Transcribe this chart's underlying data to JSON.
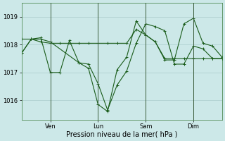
{
  "background_color": "#cce8e8",
  "grid_color": "#aacccc",
  "line_color": "#1a5c1a",
  "marker_color": "#1a5c1a",
  "xlabel": "Pression niveau de la mer( hPa )",
  "ylim": [
    1015.3,
    1019.5
  ],
  "yticks": [
    1016,
    1017,
    1018,
    1019
  ],
  "series": [
    {
      "x": [
        0.0,
        0.5,
        1.0,
        1.5,
        3.0,
        3.5,
        4.0,
        4.5,
        5.0,
        5.5,
        6.0,
        6.5,
        7.0,
        7.5,
        8.0,
        8.5,
        9.0,
        9.5,
        10.0,
        10.5
      ],
      "y": [
        1017.7,
        1018.2,
        1018.2,
        1018.1,
        1017.35,
        1017.3,
        1016.6,
        1015.65,
        1016.55,
        1017.05,
        1018.05,
        1018.75,
        1018.65,
        1018.5,
        1017.3,
        1017.3,
        1017.95,
        1017.85,
        1017.5,
        1017.5
      ],
      "marker": "+"
    },
    {
      "x": [
        0.0,
        0.5,
        1.0,
        1.5,
        2.0,
        2.5,
        3.0,
        3.5,
        4.0,
        4.5,
        5.0,
        5.5,
        6.0,
        6.5,
        7.0,
        7.5,
        8.0,
        8.5,
        9.0,
        9.5,
        10.0,
        10.5
      ],
      "y": [
        1018.2,
        1018.2,
        1018.1,
        1018.05,
        1018.05,
        1018.05,
        1018.05,
        1018.05,
        1018.05,
        1018.05,
        1018.05,
        1018.05,
        1018.55,
        1018.35,
        1018.1,
        1017.5,
        1017.5,
        1017.5,
        1017.5,
        1017.5,
        1017.5,
        1017.5
      ],
      "marker": "+"
    },
    {
      "x": [
        0.0,
        0.5,
        1.0,
        1.5,
        2.0,
        2.5,
        3.0,
        3.5,
        4.0,
        4.5,
        5.0,
        5.5,
        6.0,
        6.5,
        7.0,
        7.5,
        8.0,
        8.5,
        9.0,
        9.5,
        10.0,
        10.5
      ],
      "y": [
        1017.7,
        1018.2,
        1018.25,
        1017.0,
        1017.0,
        1018.15,
        1017.35,
        1017.15,
        1015.85,
        1015.6,
        1017.1,
        1017.55,
        1018.85,
        1018.35,
        1018.1,
        1017.45,
        1017.45,
        1018.75,
        1018.95,
        1018.05,
        1017.95,
        1017.55
      ],
      "marker": "+"
    }
  ],
  "vlines_x": [
    1.5,
    4.0,
    6.5,
    9.0
  ],
  "vlines_labels": [
    "Ven",
    "Lun",
    "Sam",
    "Dim"
  ],
  "xlim": [
    0.0,
    10.5
  ],
  "xlabel_fontsize": 7,
  "tick_fontsize": 6
}
